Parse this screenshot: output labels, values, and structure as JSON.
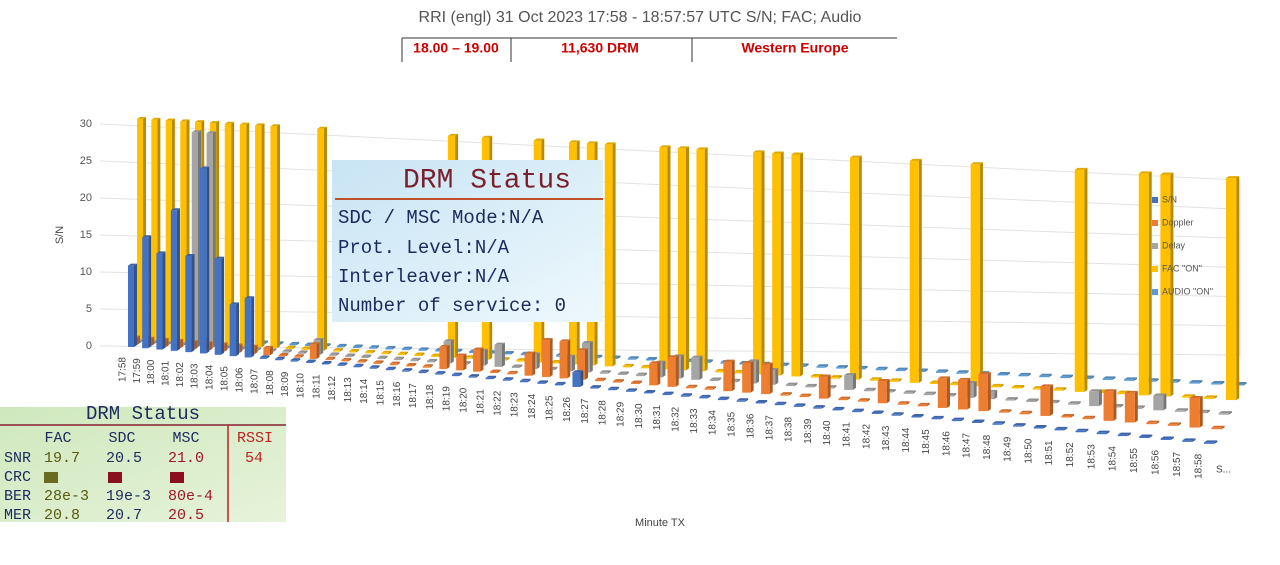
{
  "chart_data": {
    "type": "bar",
    "title": "RRI (engl) 31 Oct 2023 17:58 - 18:57:57 UTC S/N; FAC; Audio",
    "y_label": "S/N",
    "x_label": "Minute TX",
    "depth_label": "S...",
    "categories": [
      "17:58",
      "17:59",
      "18:00",
      "18:01",
      "18:02",
      "18:03",
      "18:04",
      "18:05",
      "18:06",
      "18:07",
      "18:08",
      "18:09",
      "18:10",
      "18:11",
      "18:12",
      "18:13",
      "18:14",
      "18:15",
      "18:16",
      "18:17",
      "18:18",
      "18:19",
      "18:20",
      "18:21",
      "18:22",
      "18:23",
      "18:24",
      "18:25",
      "18:26",
      "18:27",
      "18:28",
      "18:29",
      "18:30",
      "18:31",
      "18:32",
      "18:33",
      "18:34",
      "18:35",
      "18:36",
      "18:37",
      "18:38",
      "18:39",
      "18:40",
      "18:41",
      "18:42",
      "18:43",
      "18:44",
      "18:45",
      "18:46",
      "18:47",
      "18:48",
      "18:49",
      "18:50",
      "18:51",
      "18:52",
      "18:53",
      "18:54",
      "18:55",
      "18:56",
      "18:57",
      "18:58"
    ],
    "ylim": [
      0,
      30
    ],
    "yticks": [
      0,
      5,
      10,
      15,
      20,
      25,
      30
    ],
    "grid": true,
    "series": [
      {
        "name": "S/N",
        "color": "#4472c4",
        "values": [
          11,
          15,
          13,
          19,
          13,
          25,
          13,
          7,
          8,
          0,
          0,
          0,
          0,
          0,
          0,
          0,
          0,
          0,
          0,
          0,
          0,
          0,
          0,
          0,
          0,
          0,
          0,
          0,
          2,
          0,
          0,
          0,
          0,
          0,
          0,
          0,
          0,
          0,
          0,
          0,
          0,
          0,
          0,
          0,
          0,
          0,
          0,
          0,
          0,
          0,
          0,
          0,
          0,
          0,
          0,
          0,
          0,
          0,
          0,
          0,
          0
        ]
      },
      {
        "name": "Doppler",
        "color": "#ed7d31",
        "values": [
          1,
          1,
          1,
          1,
          1,
          1,
          1,
          1,
          1,
          1,
          0,
          0,
          2,
          0,
          0,
          0,
          0,
          0,
          0,
          0,
          3,
          2,
          3,
          0,
          0,
          3,
          5,
          5,
          4,
          0,
          0,
          0,
          3,
          4,
          0,
          0,
          4,
          4,
          4,
          0,
          0,
          3,
          0,
          0,
          3,
          0,
          0,
          4,
          4,
          5,
          0,
          0,
          4,
          0,
          0,
          4,
          4,
          0,
          0,
          4,
          0
        ]
      },
      {
        "name": "Delay",
        "color": "#a5a5a5",
        "values": [
          0,
          0,
          0,
          0,
          29,
          29,
          0,
          0,
          0,
          0,
          0,
          0,
          2,
          0,
          0,
          0,
          0,
          0,
          0,
          0,
          3,
          0,
          2,
          3,
          0,
          2,
          0,
          2,
          4,
          0,
          0,
          0,
          2,
          3,
          3,
          0,
          0,
          3,
          2,
          0,
          0,
          0,
          2,
          0,
          0,
          0,
          0,
          0,
          2,
          1,
          0,
          0,
          0,
          0,
          2,
          0,
          0,
          2,
          0,
          0,
          0
        ]
      },
      {
        "name": "FAC \"ON\"",
        "color": "#ffc000",
        "values": [
          30,
          30,
          30,
          30,
          30,
          30,
          30,
          30,
          30,
          30,
          0,
          0,
          30,
          0,
          0,
          0,
          0,
          0,
          0,
          0,
          30,
          0,
          30,
          0,
          0,
          30,
          0,
          30,
          30,
          30,
          0,
          0,
          30,
          30,
          30,
          0,
          0,
          30,
          30,
          30,
          0,
          0,
          30,
          0,
          0,
          30,
          0,
          0,
          30,
          0,
          0,
          0,
          0,
          30,
          0,
          0,
          30,
          30,
          0,
          0,
          30
        ]
      },
      {
        "name": "AUDIO \"ON\"",
        "color": "#5b9bd5",
        "values": [
          0,
          0,
          0,
          0,
          0,
          0,
          0,
          0,
          0,
          0,
          0,
          0,
          0,
          0,
          0,
          0,
          0,
          0,
          0,
          0,
          0,
          0,
          0,
          0,
          0,
          0,
          0,
          0,
          0,
          0,
          0,
          0,
          0,
          0,
          0,
          0,
          0,
          0,
          0,
          0,
          0,
          0,
          0,
          0,
          0,
          0,
          0,
          0,
          0,
          0,
          0,
          0,
          0,
          0,
          0,
          0,
          0,
          0,
          0,
          0,
          0
        ]
      }
    ]
  },
  "header_table": {
    "cells": [
      "18.00 – 19.00",
      "11,630 DRM",
      "Western Europe"
    ]
  },
  "status_panel": {
    "title": "DRM Status",
    "lines": [
      "SDC / MSC Mode:N/A",
      "Prot. Level:N/A",
      "Interleaver:N/A",
      "Number of service: 0"
    ]
  },
  "receiver_panel": {
    "title": "DRM Status",
    "columns": [
      "FAC",
      "SDC",
      "MSC",
      "RSSI"
    ],
    "rows": [
      [
        "SNR",
        "19.7",
        "20.5",
        "21.0",
        "54"
      ],
      [
        "CRC"
      ],
      [
        "BER",
        "28e-3",
        "19e-3",
        "80e-4"
      ],
      [
        "MER",
        "20.8",
        "20.7",
        "20.5"
      ]
    ]
  }
}
